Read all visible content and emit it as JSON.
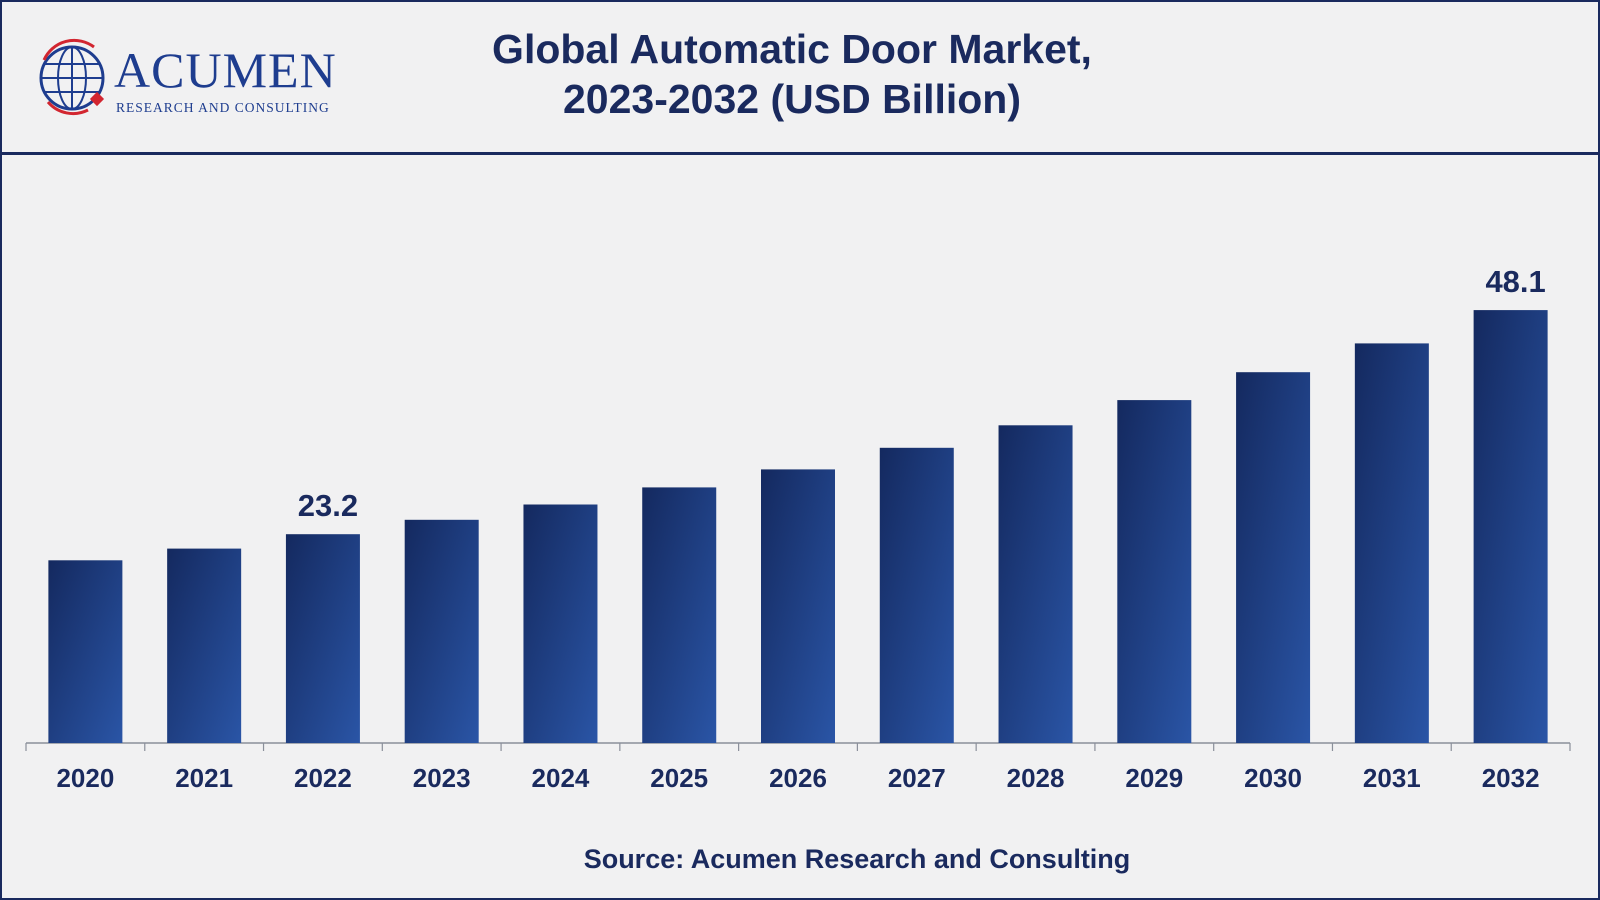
{
  "header": {
    "logo": {
      "name": "ACUMEN",
      "tagline": "RESEARCH AND CONSULTING"
    },
    "title_line1": "Global Automatic Door Market,",
    "title_line2": "2023-2032 (USD Billion)"
  },
  "chart_data": {
    "type": "bar",
    "title": "Global Automatic Door Market, 2023-2032 (USD Billion)",
    "xlabel": "",
    "ylabel": "",
    "categories": [
      "2020",
      "2021",
      "2022",
      "2023",
      "2024",
      "2025",
      "2026",
      "2027",
      "2028",
      "2029",
      "2030",
      "2031",
      "2032"
    ],
    "values": [
      20.3,
      21.6,
      23.2,
      24.8,
      26.5,
      28.4,
      30.4,
      32.8,
      35.3,
      38.1,
      41.2,
      44.4,
      48.1
    ],
    "data_labels": {
      "2022": "23.2",
      "2032": "48.1"
    },
    "ylim": [
      0,
      52
    ],
    "grid": false,
    "legend": "none",
    "bar_color_dark": "#14295f",
    "bar_color_light": "#2a55a6",
    "text_color": "#1a2a5e"
  },
  "source": "Source: Acumen Research and Consulting"
}
